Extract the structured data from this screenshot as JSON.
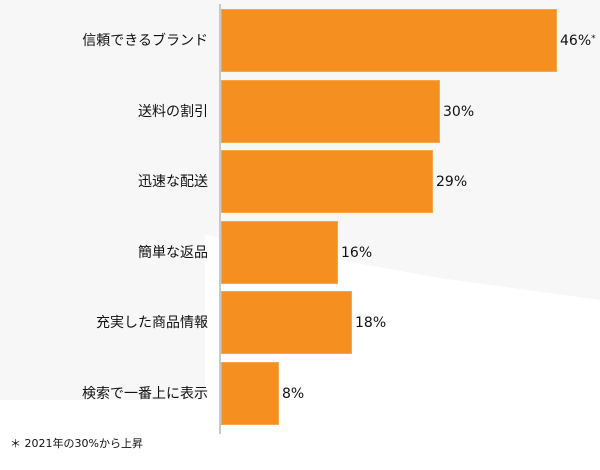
{
  "chart_data": {
    "type": "bar",
    "orientation": "horizontal",
    "title": "",
    "xlabel": "",
    "ylabel": "",
    "categories": [
      "信頼できるブランド",
      "送料の割引",
      "迅速な配送",
      "簡単な返品",
      "充実した商品情報",
      "検索で一番上に表示"
    ],
    "values": [
      46,
      30,
      29,
      16,
      18,
      8
    ],
    "value_labels": [
      "46%",
      "30%",
      "29%",
      "16%",
      "18%",
      "8%"
    ],
    "annotations": [
      {
        "category": "信頼できるブランド",
        "marker": "*"
      }
    ],
    "unit": "%",
    "grid": false,
    "legend": null,
    "bar_color": "#f58f1f"
  },
  "footnote": "＊ 2021年の30%から上昇",
  "colors": {
    "bar": "#f58f1f",
    "background_panel": "#f7f7f7",
    "axis": "#c8c8c8"
  }
}
